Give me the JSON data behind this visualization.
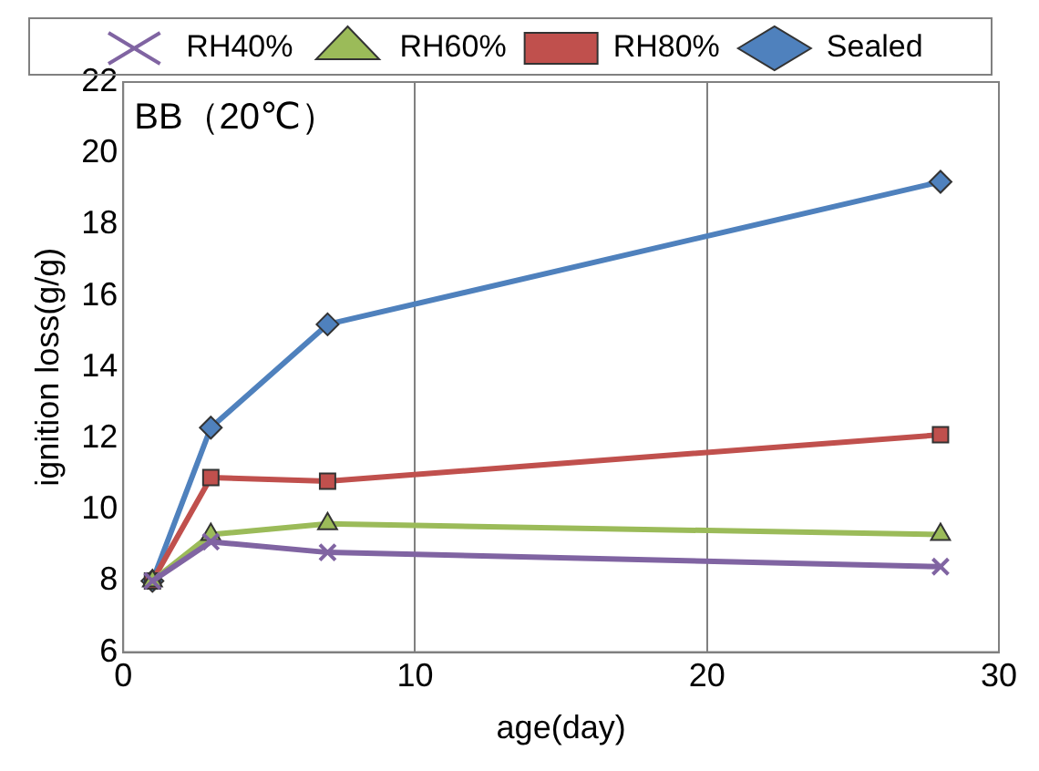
{
  "chart_data": {
    "type": "line",
    "xlabel": "age(day)",
    "ylabel": "ignition loss(g/g)",
    "annotations": [
      "BB（20℃）"
    ],
    "x": [
      1,
      3,
      7,
      28
    ],
    "series": [
      {
        "name": "RH40%",
        "color": "#8064a2",
        "values": [
          8.0,
          9.1,
          8.8,
          8.4
        ],
        "marker": "cross"
      },
      {
        "name": "RH60%",
        "color": "#9bbb59",
        "values": [
          8.0,
          9.3,
          9.6,
          9.3
        ],
        "marker": "triangle"
      },
      {
        "name": "RH80%",
        "color": "#c0504d",
        "values": [
          8.0,
          10.9,
          10.8,
          12.1
        ],
        "marker": "square"
      },
      {
        "name": "Sealed",
        "color": "#4f81bd",
        "values": [
          8.0,
          12.3,
          15.2,
          19.2
        ],
        "marker": "diamond"
      }
    ],
    "xlim": [
      0,
      30
    ],
    "xticks": [
      0,
      10,
      20,
      30
    ],
    "ylim": [
      6,
      22
    ],
    "yticks": [
      6,
      8,
      10,
      12,
      14,
      16,
      18,
      20,
      22
    ],
    "grid": "x",
    "legend": "top",
    "line_style": "solid"
  }
}
